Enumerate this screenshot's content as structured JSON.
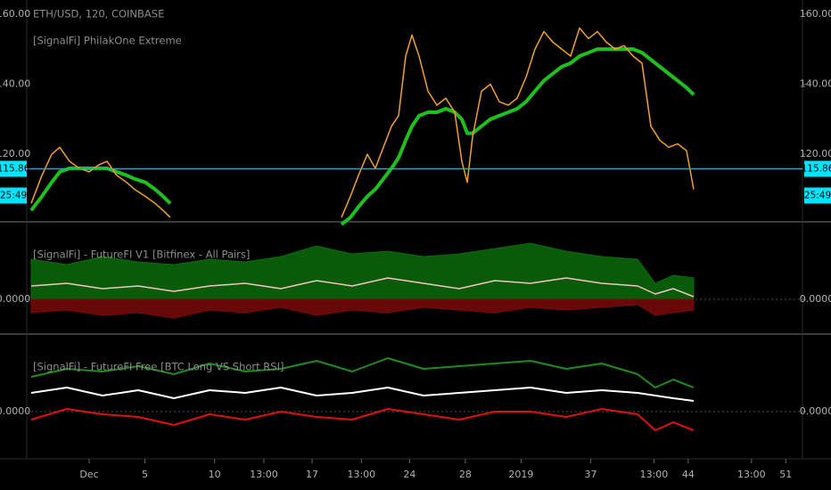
{
  "chart_data": [
    {
      "type": "line",
      "title": "ETH/USD, 120, COINBASE",
      "subtitle": "[SignalFi] PhilakOne Extreme",
      "xlim": [
        -3.48,
        52.2
      ],
      "ylim": [
        101.5,
        163.5
      ],
      "yticks": [
        {
          "value": 120,
          "label": "120.00"
        },
        {
          "value": 140,
          "label": "140.00"
        },
        {
          "value": 160,
          "label": "160.00"
        }
      ],
      "last_price": 115.86,
      "countdown": "25:49",
      "x": [
        -3.16,
        -2.39,
        -1.69,
        -1.11,
        -0.41,
        0.3,
        1,
        1.7,
        2.28,
        2.98,
        3.69,
        4.26,
        5.03,
        5.73,
        6.31,
        6.82,
        12,
        19.11,
        19.75,
        20.33,
        20.97,
        21.54,
        22.12,
        22.7,
        23.21,
        23.72,
        24.17,
        24.68,
        25.32,
        25.96,
        26.6,
        27.24,
        27.75,
        28.14,
        28.52,
        29.16,
        29.8,
        30.44,
        31.08,
        31.72,
        32.36,
        33,
        33.64,
        34.28,
        34.92,
        35.56,
        36.2,
        36.84,
        37.48,
        38.12,
        38.76,
        39.4,
        40.04,
        40.68,
        41.32,
        41.96,
        42.6,
        43.24,
        43.88,
        44.39
      ],
      "series": [
        {
          "color": "#1fbf1f",
          "width": 4,
          "values": [
            104,
            108,
            112,
            115,
            116,
            116,
            116,
            116,
            116,
            115,
            114,
            113,
            112,
            110,
            108,
            106,
            null,
            100,
            102,
            105,
            108,
            110,
            113,
            116,
            119,
            124,
            128,
            131,
            132,
            132,
            133,
            132,
            130,
            126,
            126,
            128,
            130,
            131,
            132,
            133,
            135,
            138,
            141,
            143,
            145,
            146,
            148,
            149,
            150,
            150,
            150,
            150,
            150,
            149,
            147,
            145,
            143,
            141,
            139,
            137
          ]
        },
        {
          "color": "#f0a030",
          "width": 1.5,
          "values": [
            106,
            114,
            120,
            122,
            118,
            116,
            115,
            117,
            118,
            114,
            112,
            110,
            108,
            106,
            104,
            102,
            null,
            102,
            108,
            114,
            120,
            116,
            122,
            128,
            131,
            148,
            154,
            148,
            138,
            134,
            136,
            132,
            118,
            112,
            125,
            138,
            140,
            135,
            134,
            136,
            142,
            150,
            155,
            152,
            150,
            148,
            156,
            153,
            155,
            152,
            150,
            151,
            148,
            146,
            128,
            124,
            122,
            123,
            121,
            110
          ]
        }
      ]
    },
    {
      "type": "line",
      "title": "[SignalFi] - FutureFI V1 [Bitfinex - All Pairs]",
      "xlim": [
        -3.48,
        52.2
      ],
      "ylim": [
        -1.2,
        2.8
      ],
      "yticks": [
        {
          "value": 0,
          "label": "0.0000"
        }
      ],
      "x": [
        -3.16,
        -0.6,
        1.96,
        4.52,
        7.08,
        9.64,
        12.2,
        14.76,
        17.32,
        19.88,
        22.44,
        25,
        27.56,
        30.12,
        32.68,
        35.24,
        37.8,
        40.36,
        41.64,
        42.92,
        44.39
      ],
      "series": [
        {
          "color": "#0b6b0b",
          "area": true,
          "values": [
            1.5,
            1.3,
            1.6,
            1.4,
            1.3,
            1.5,
            1.4,
            1.6,
            2.0,
            1.7,
            1.8,
            1.6,
            1.7,
            1.9,
            2.1,
            1.8,
            1.6,
            1.5,
            0.6,
            0.9,
            0.8
          ]
        },
        {
          "color": "#7a0a0a",
          "area": true,
          "values": [
            -0.5,
            -0.4,
            -0.6,
            -0.5,
            -0.7,
            -0.4,
            -0.5,
            -0.3,
            -0.6,
            -0.4,
            -0.5,
            -0.3,
            -0.4,
            -0.5,
            -0.3,
            -0.4,
            -0.3,
            -0.2,
            -0.6,
            -0.5,
            -0.4
          ]
        },
        {
          "color": "#f2c4c4",
          "width": 1.5,
          "values": [
            0.5,
            0.6,
            0.4,
            0.5,
            0.3,
            0.5,
            0.6,
            0.4,
            0.7,
            0.5,
            0.8,
            0.6,
            0.4,
            0.7,
            0.6,
            0.8,
            0.6,
            0.5,
            0.2,
            0.4,
            0.1
          ]
        }
      ]
    },
    {
      "type": "line",
      "title": "[SignalFi] - FutureFI Free [BTC Long VS Short RSI]",
      "xlim": [
        -3.48,
        52.2
      ],
      "ylim": [
        -1.2,
        2.8
      ],
      "yticks": [
        {
          "value": 0,
          "label": "0.0000"
        }
      ],
      "xticks": [
        {
          "value": 1,
          "label": "Dec"
        },
        5,
        10,
        {
          "value": 13.54,
          "label": "13:00"
        },
        17,
        {
          "value": 20.54,
          "label": "13:00"
        },
        24,
        28,
        {
          "value": 32,
          "label": "2019"
        },
        37,
        {
          "value": 41.54,
          "label": "13:00"
        },
        44,
        {
          "value": 48.54,
          "label": "13:00"
        },
        51
      ],
      "x": [
        -3.16,
        -0.6,
        1.96,
        4.52,
        7.08,
        9.64,
        12.2,
        14.76,
        17.32,
        19.88,
        22.44,
        25,
        27.56,
        30.12,
        32.68,
        35.24,
        37.8,
        40.36,
        41.64,
        42.92,
        44.39
      ],
      "series": [
        {
          "color": "#1e8c1e",
          "width": 2,
          "values": [
            1.3,
            1.6,
            1.5,
            1.7,
            1.4,
            1.8,
            1.5,
            1.6,
            1.9,
            1.5,
            2.0,
            1.6,
            1.7,
            1.8,
            1.9,
            1.6,
            1.8,
            1.4,
            0.9,
            1.2,
            0.9
          ]
        },
        {
          "color": "#ffffff",
          "width": 2,
          "values": [
            0.7,
            0.9,
            0.6,
            0.8,
            0.5,
            0.8,
            0.7,
            0.9,
            0.6,
            0.7,
            0.9,
            0.6,
            0.7,
            0.8,
            0.9,
            0.7,
            0.8,
            0.7,
            0.6,
            0.5,
            0.4
          ]
        },
        {
          "color": "#e01010",
          "width": 2,
          "values": [
            -0.3,
            0.1,
            -0.1,
            -0.2,
            -0.5,
            -0.1,
            -0.3,
            0.0,
            -0.2,
            -0.3,
            0.1,
            -0.1,
            -0.3,
            0.0,
            0.0,
            -0.2,
            0.1,
            -0.1,
            -0.7,
            -0.4,
            -0.7
          ]
        }
      ]
    }
  ]
}
